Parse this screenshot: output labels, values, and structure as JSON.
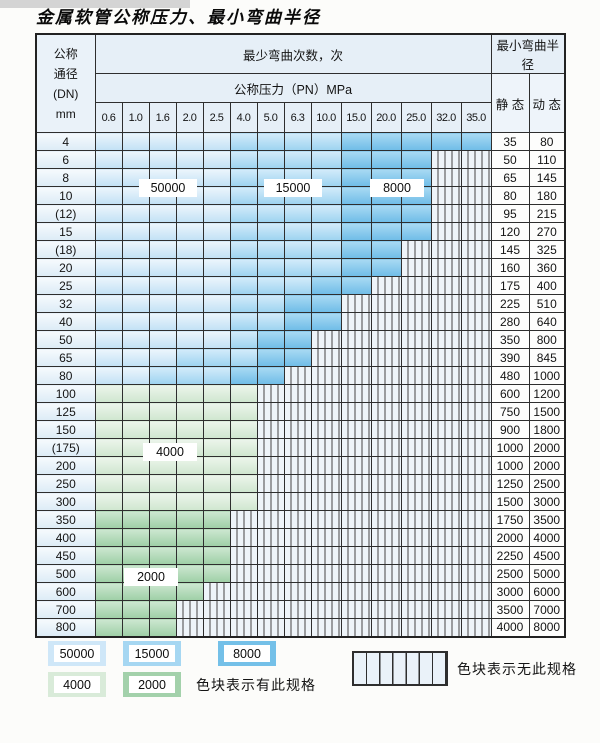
{
  "chart_data": {
    "type": "table",
    "title": "金属软管公称压力、最小弯曲半径",
    "corner_lines": [
      "公称",
      "通径",
      "(DN)",
      "mm"
    ],
    "bend_cycles_header": "最少弯曲次数，次",
    "pressure_header": "公称压力（PN）MPa",
    "radius_header": "最小弯曲半径",
    "static_label": "静 态",
    "dynamic_label": "动 态",
    "pressure_columns": [
      "0.6",
      "1.0",
      "1.6",
      "2.0",
      "2.5",
      "4.0",
      "5.0",
      "6.3",
      "10.0",
      "15.0",
      "20.0",
      "25.0",
      "32.0",
      "35.0"
    ],
    "cell_color_key": {
      "a": "50000",
      "b": "15000",
      "c": "8000",
      "d": "4000",
      "e": "2000",
      "h": "无此规格"
    },
    "rows": [
      {
        "dn": "4",
        "cells": "aaaaabbbbccccc",
        "static": "35",
        "dynamic": "80"
      },
      {
        "dn": "6",
        "cells": "aaaaabbbbccchh",
        "static": "50",
        "dynamic": "110"
      },
      {
        "dn": "8",
        "cells": "aaaaabbbbccchh",
        "static": "65",
        "dynamic": "145"
      },
      {
        "dn": "10",
        "cells": "aaaaabbbbccchh",
        "static": "80",
        "dynamic": "180"
      },
      {
        "dn": "(12)",
        "cells": "aaaaabbbbccchh",
        "static": "95",
        "dynamic": "215"
      },
      {
        "dn": "15",
        "cells": "aaaaabbbbccchh",
        "static": "120",
        "dynamic": "270"
      },
      {
        "dn": "(18)",
        "cells": "aaaaabbbbcchhh",
        "static": "145",
        "dynamic": "325"
      },
      {
        "dn": "20",
        "cells": "aaaaabbbbcchhh",
        "static": "160",
        "dynamic": "360"
      },
      {
        "dn": "25",
        "cells": "aaaaabbbcchhhh",
        "static": "175",
        "dynamic": "400"
      },
      {
        "dn": "32",
        "cells": "aaaaabbcchhhhh",
        "static": "225",
        "dynamic": "510"
      },
      {
        "dn": "40",
        "cells": "aaaaabbcchhhhh",
        "static": "280",
        "dynamic": "640"
      },
      {
        "dn": "50",
        "cells": "aaaaabcchhhhhh",
        "static": "350",
        "dynamic": "800"
      },
      {
        "dn": "65",
        "cells": "aaabbbcchhhhhh",
        "static": "390",
        "dynamic": "845"
      },
      {
        "dn": "80",
        "cells": "aabbbcchhhhhhh",
        "static": "480",
        "dynamic": "1000"
      },
      {
        "dn": "100",
        "cells": "ddddddhhhhhhhh",
        "static": "600",
        "dynamic": "1200"
      },
      {
        "dn": "125",
        "cells": "ddddddhhhhhhhh",
        "static": "750",
        "dynamic": "1500"
      },
      {
        "dn": "150",
        "cells": "ddddddhhhhhhhh",
        "static": "900",
        "dynamic": "1800"
      },
      {
        "dn": "(175)",
        "cells": "ddddddhhhhhhhh",
        "static": "1000",
        "dynamic": "2000"
      },
      {
        "dn": "200",
        "cells": "ddddddhhhhhhhh",
        "static": "1000",
        "dynamic": "2000"
      },
      {
        "dn": "250",
        "cells": "ddddddhhhhhhhh",
        "static": "1250",
        "dynamic": "2500"
      },
      {
        "dn": "300",
        "cells": "ddddddhhhhhhhh",
        "static": "1500",
        "dynamic": "3000"
      },
      {
        "dn": "350",
        "cells": "eeeeehhhhhhhhh",
        "static": "1750",
        "dynamic": "3500"
      },
      {
        "dn": "400",
        "cells": "eeeeehhhhhhhhh",
        "static": "2000",
        "dynamic": "4000"
      },
      {
        "dn": "450",
        "cells": "eeeeehhhhhhhhh",
        "static": "2250",
        "dynamic": "4500"
      },
      {
        "dn": "500",
        "cells": "eeeeehhhhhhhhh",
        "static": "2500",
        "dynamic": "5000"
      },
      {
        "dn": "600",
        "cells": "eeeehhhhhhhhhh",
        "static": "3000",
        "dynamic": "6000"
      },
      {
        "dn": "700",
        "cells": "eeehhhhhhhhhhh",
        "static": "3500",
        "dynamic": "7000"
      },
      {
        "dn": "800",
        "cells": "eeehhhhhhhhhhh",
        "static": "4000",
        "dynamic": "8000"
      }
    ]
  },
  "zone_labels": [
    {
      "value": "50000"
    },
    {
      "value": "15000"
    },
    {
      "value": "8000"
    },
    {
      "value": "4000"
    },
    {
      "value": "2000"
    }
  ],
  "legend": {
    "items": [
      {
        "value": "50000",
        "key": "a"
      },
      {
        "value": "15000",
        "key": "b"
      },
      {
        "value": "8000",
        "key": "c"
      },
      {
        "value": "4000",
        "key": "d"
      },
      {
        "value": "2000",
        "key": "e"
      }
    ],
    "present_label": "色块表示有此规格",
    "absent_label": "色块表示无此规格"
  },
  "colors": {
    "cycles_50000": "#c7e4f6",
    "cycles_15000": "#a4d6f1",
    "cycles_8000": "#74bfe8",
    "cycles_4000": "#d8ead8",
    "cycles_2000": "#a3d0aa",
    "no_spec_bg": "#eef4f9",
    "grid": "#2e2e2e",
    "header_bg": "#e6eff7"
  }
}
